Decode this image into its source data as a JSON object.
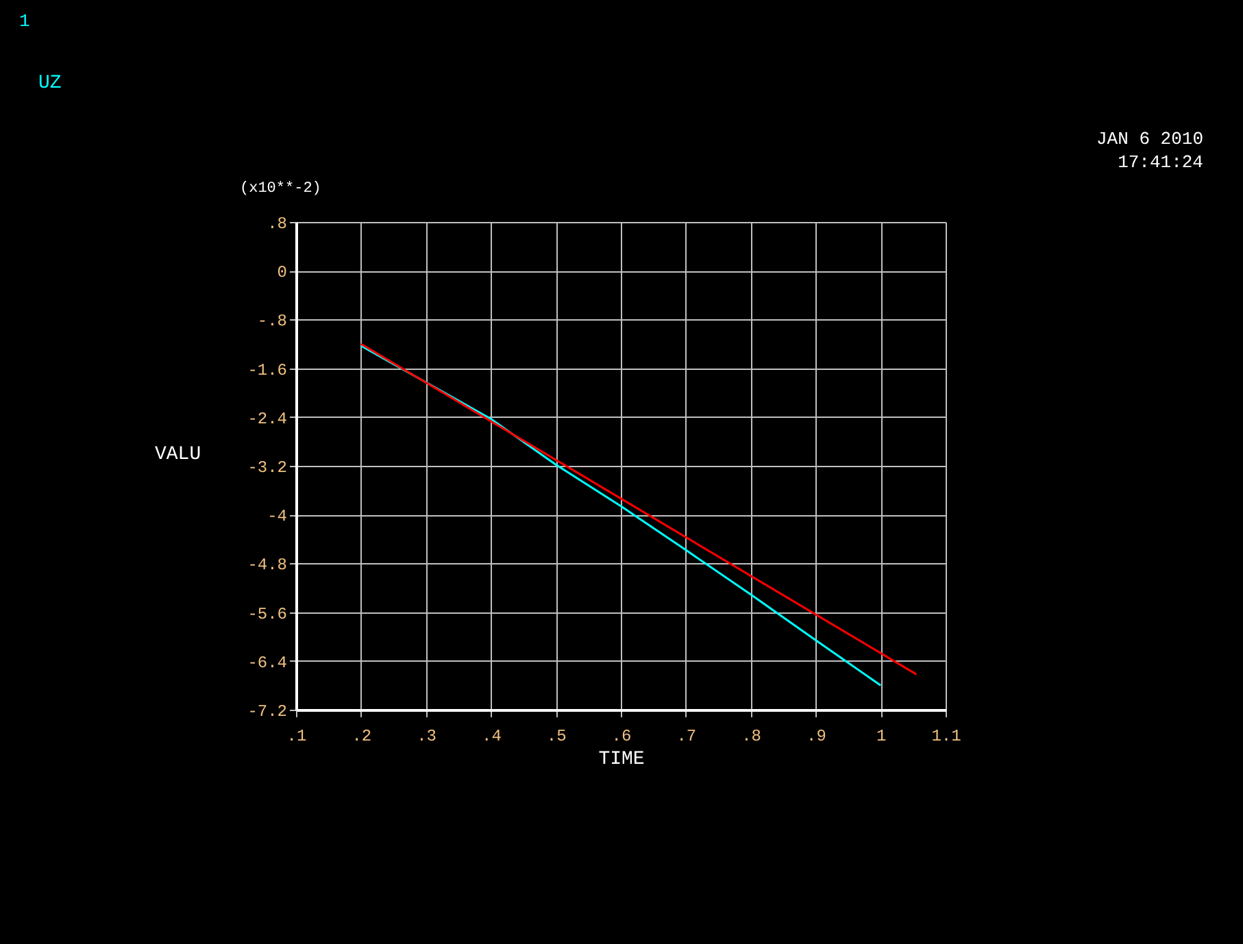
{
  "chart_data": {
    "type": "line",
    "xlabel": "TIME",
    "ylabel": "VALU",
    "annotations": [
      "1",
      "(x10**-2)",
      "JAN  6 2010",
      "17:41:24"
    ],
    "xlim": [
      0.1,
      1.1
    ],
    "ylim": [
      -7.2,
      0.8
    ],
    "xticks": [
      {
        "value": 0.1,
        "label": ".1"
      },
      {
        "value": 0.2,
        "label": ".2"
      },
      {
        "value": 0.3,
        "label": ".3"
      },
      {
        "value": 0.4,
        "label": ".4"
      },
      {
        "value": 0.5,
        "label": ".5"
      },
      {
        "value": 0.6,
        "label": ".6"
      },
      {
        "value": 0.7,
        "label": ".7"
      },
      {
        "value": 0.8,
        "label": ".8"
      },
      {
        "value": 0.9,
        "label": ".9"
      },
      1,
      1.1
    ],
    "yticks": [
      {
        "value": 0.8,
        "label": ".8"
      },
      0,
      {
        "value": -0.8,
        "label": "-.8"
      },
      -1.6,
      -2.4,
      -3.2,
      -4,
      -4.8,
      -5.6,
      -6.4,
      -7.2
    ],
    "grid": true,
    "series": [
      {
        "name": "UZ",
        "color": "#00ffff",
        "x": [
          0.2,
          0.3,
          0.4,
          0.5,
          0.6,
          0.7,
          0.8,
          0.9,
          1.0
        ],
        "values": [
          -1.23,
          -1.83,
          -2.43,
          -3.18,
          -3.86,
          -4.58,
          -5.31,
          -6.06,
          -6.8
        ]
      },
      {
        "color": "#ff0000",
        "x": [
          0.2,
          1.055
        ],
        "values": [
          -1.2,
          -6.62
        ]
      }
    ]
  }
}
